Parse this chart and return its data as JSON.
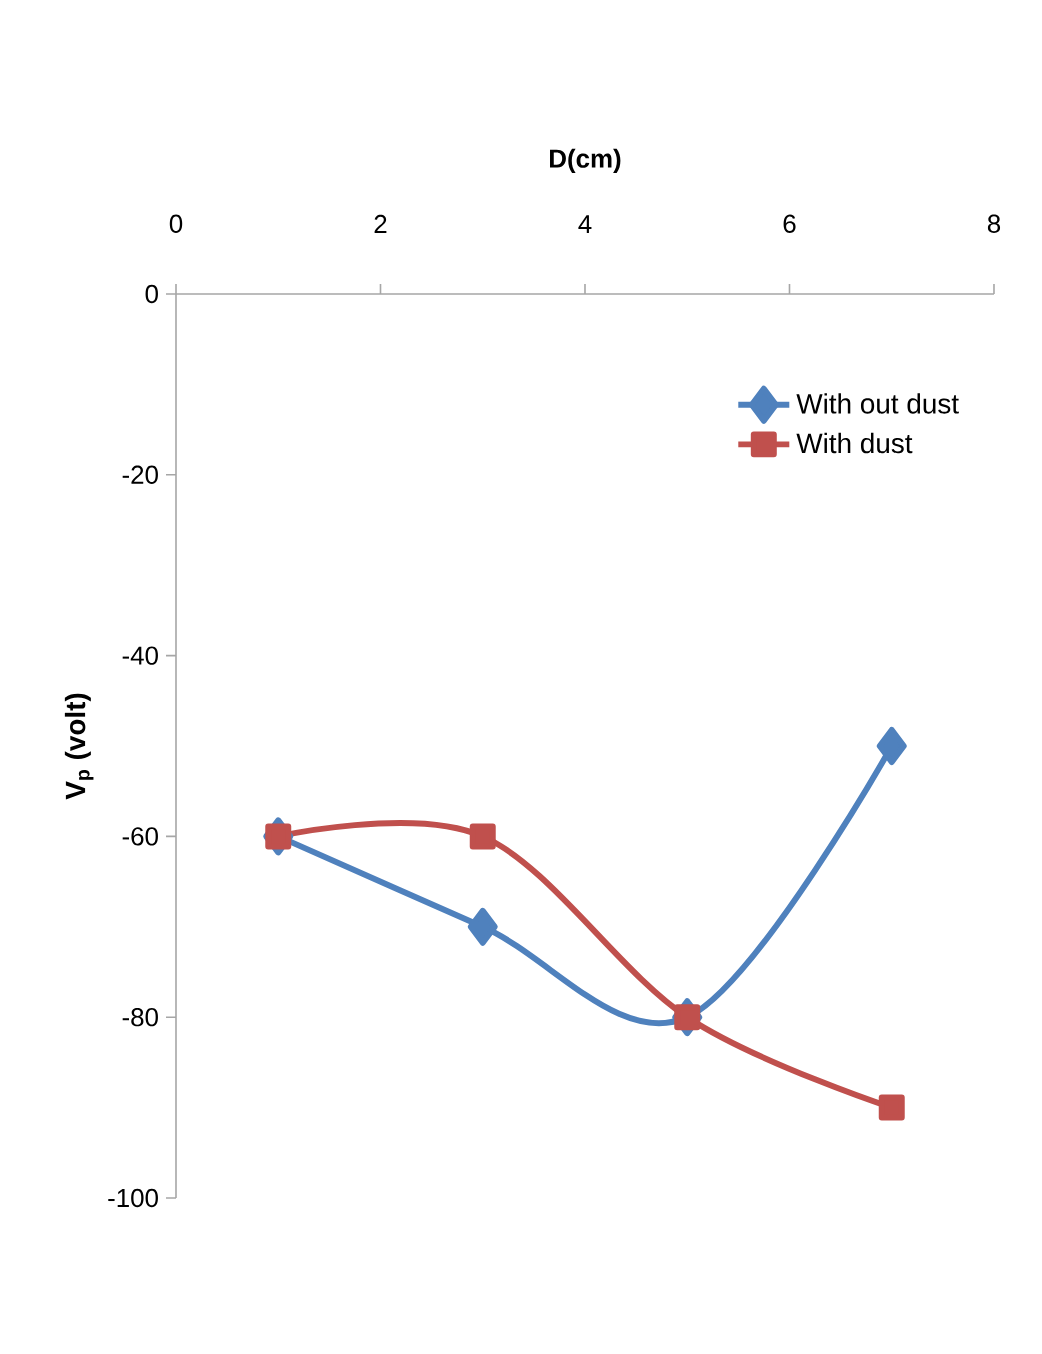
{
  "chart_data": {
    "type": "line",
    "xlabel": "D(cm)",
    "ylabel": "V$_{p}$ (volt)",
    "x": [
      1,
      3,
      5,
      7
    ],
    "series": [
      {
        "name": "With out dust",
        "color": "#4f81bd",
        "marker": "diamond",
        "values": [
          -60,
          -70,
          -80,
          -50
        ]
      },
      {
        "name": "With dust",
        "color": "#c0504d",
        "marker": "square",
        "values": [
          -60,
          -60,
          -80,
          -90
        ]
      }
    ],
    "xlim": [
      0,
      8
    ],
    "xticks": [
      0,
      2,
      4,
      6,
      8
    ],
    "ylim": [
      -100,
      0
    ],
    "yticks": [
      0,
      -20,
      -40,
      -60,
      -80,
      -100
    ],
    "legend": "top right",
    "grid": false,
    "line_style": "solid"
  }
}
